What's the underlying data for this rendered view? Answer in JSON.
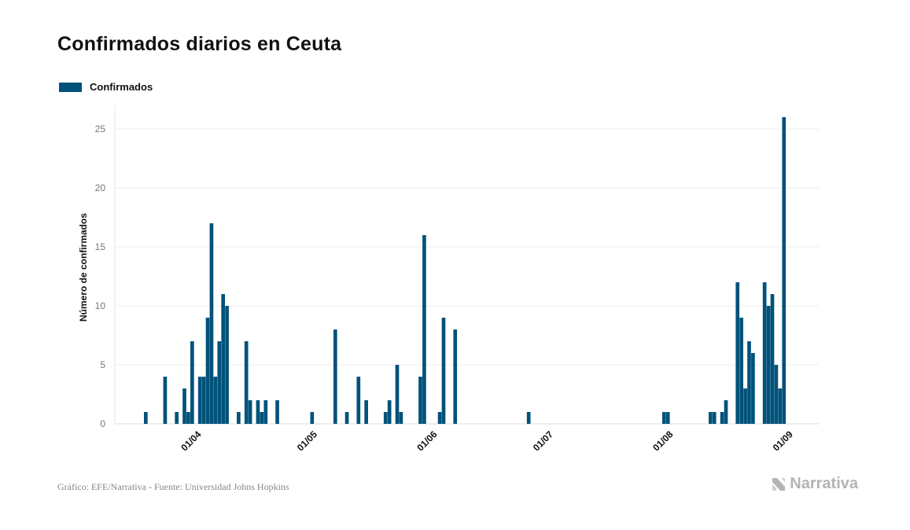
{
  "title": "Confirmados diarios en Ceuta",
  "legend": {
    "label": "Confirmados",
    "color": "#00527a"
  },
  "footer": {
    "source": "Gráfico: EFE/Narrativa - Fuente: Universidad Johns Hopkins"
  },
  "brand": {
    "name": "Narrativa",
    "icon": "narrativa-logo-icon"
  },
  "chart_data": {
    "type": "bar",
    "title": "Confirmados diarios en Ceuta",
    "xlabel": "",
    "ylabel": "Número de confirmados",
    "ylim": [
      0,
      27
    ],
    "yticks": [
      0,
      5,
      10,
      15,
      20,
      25
    ],
    "xticks": [
      {
        "label": "01/04",
        "date": "2020-04-01"
      },
      {
        "label": "01/05",
        "date": "2020-05-01"
      },
      {
        "label": "01/06",
        "date": "2020-06-01"
      },
      {
        "label": "01/07",
        "date": "2020-07-01"
      },
      {
        "label": "01/08",
        "date": "2020-08-01"
      },
      {
        "label": "01/09",
        "date": "2020-09-01"
      }
    ],
    "x_range": [
      "2020-03-12",
      "2020-09-10"
    ],
    "grid": true,
    "legend_position": "top-left",
    "series": [
      {
        "name": "Confirmados",
        "color": "#00527a",
        "points": [
          [
            "2020-03-20",
            1
          ],
          [
            "2020-03-25",
            4
          ],
          [
            "2020-03-28",
            1
          ],
          [
            "2020-03-30",
            3
          ],
          [
            "2020-03-31",
            1
          ],
          [
            "2020-04-01",
            7
          ],
          [
            "2020-04-03",
            4
          ],
          [
            "2020-04-04",
            4
          ],
          [
            "2020-04-05",
            9
          ],
          [
            "2020-04-06",
            17
          ],
          [
            "2020-04-07",
            4
          ],
          [
            "2020-04-08",
            7
          ],
          [
            "2020-04-09",
            11
          ],
          [
            "2020-04-10",
            10
          ],
          [
            "2020-04-13",
            1
          ],
          [
            "2020-04-15",
            7
          ],
          [
            "2020-04-16",
            2
          ],
          [
            "2020-04-18",
            2
          ],
          [
            "2020-04-19",
            1
          ],
          [
            "2020-04-20",
            2
          ],
          [
            "2020-04-23",
            2
          ],
          [
            "2020-04-27",
            0
          ],
          [
            "2020-05-02",
            1
          ],
          [
            "2020-05-08",
            8
          ],
          [
            "2020-05-11",
            1
          ],
          [
            "2020-05-14",
            4
          ],
          [
            "2020-05-16",
            2
          ],
          [
            "2020-05-21",
            1
          ],
          [
            "2020-05-22",
            2
          ],
          [
            "2020-05-24",
            5
          ],
          [
            "2020-05-25",
            1
          ],
          [
            "2020-05-30",
            4
          ],
          [
            "2020-05-31",
            16
          ],
          [
            "2020-06-04",
            1
          ],
          [
            "2020-06-05",
            9
          ],
          [
            "2020-06-08",
            8
          ],
          [
            "2020-06-27",
            1
          ],
          [
            "2020-08-01",
            1
          ],
          [
            "2020-08-02",
            1
          ],
          [
            "2020-08-13",
            1
          ],
          [
            "2020-08-14",
            1
          ],
          [
            "2020-08-16",
            1
          ],
          [
            "2020-08-17",
            2
          ],
          [
            "2020-08-19",
            0
          ],
          [
            "2020-08-20",
            12
          ],
          [
            "2020-08-21",
            9
          ],
          [
            "2020-08-22",
            3
          ],
          [
            "2020-08-23",
            7
          ],
          [
            "2020-08-24",
            6
          ],
          [
            "2020-08-27",
            12
          ],
          [
            "2020-08-28",
            10
          ],
          [
            "2020-08-29",
            11
          ],
          [
            "2020-08-30",
            5
          ],
          [
            "2020-08-31",
            3
          ],
          [
            "2020-09-01",
            26
          ]
        ]
      }
    ]
  }
}
